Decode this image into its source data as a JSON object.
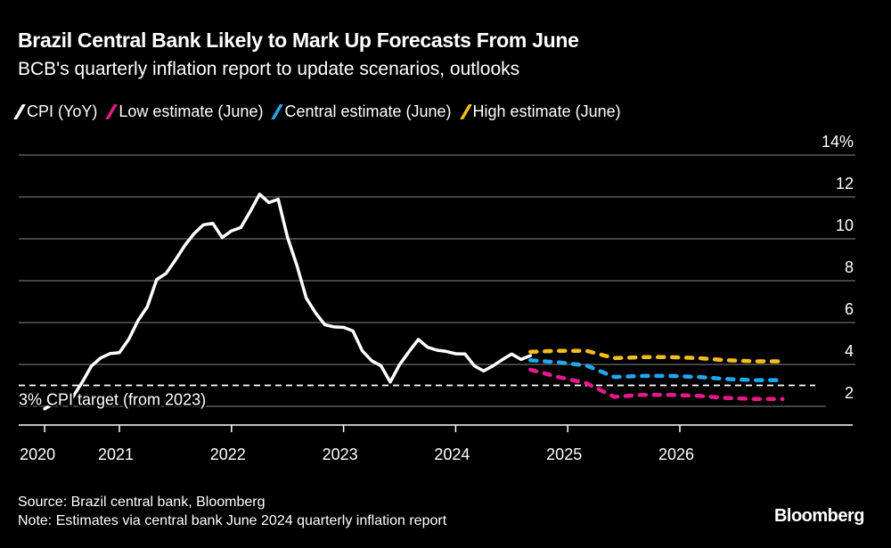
{
  "title": "Brazil Central Bank Likely to Mark Up Forecasts From June",
  "subtitle": "BCB's quarterly inflation report to update scenarios, outlooks",
  "source": "Source: Brazil central bank, Bloomberg",
  "note": "Note: Estimates via central bank June 2024 quarterly inflation report",
  "logo": "Bloomberg",
  "chart_data": {
    "type": "line",
    "xlabel": "",
    "ylabel": "",
    "y_unit": "%",
    "ylim": [
      0,
      14
    ],
    "y_ticks": [
      2,
      4,
      6,
      8,
      10,
      12,
      14
    ],
    "y_tick_labels": [
      "2",
      "4",
      "6",
      "8",
      "10",
      "12",
      "14%"
    ],
    "y_axis_position": "right",
    "x_ticks": [
      "2020",
      "2021",
      "2022",
      "2023",
      "2024",
      "2025",
      "2026"
    ],
    "grid": true,
    "legend_position": "top-left",
    "reference_line": {
      "value": 3,
      "label": "3% CPI target (from 2023)"
    },
    "series": [
      {
        "name": "CPI (YoY)",
        "color": "#ffffff",
        "style": "solid",
        "x": [
          "2020-05",
          "2020-06",
          "2020-07",
          "2020-08",
          "2020-09",
          "2020-10",
          "2020-11",
          "2020-12",
          "2021-01",
          "2021-02",
          "2021-03",
          "2021-04",
          "2021-05",
          "2021-06",
          "2021-07",
          "2021-08",
          "2021-09",
          "2021-10",
          "2021-11",
          "2021-12",
          "2022-01",
          "2022-02",
          "2022-03",
          "2022-04",
          "2022-05",
          "2022-06",
          "2022-07",
          "2022-08",
          "2022-09",
          "2022-10",
          "2022-11",
          "2022-12",
          "2023-01",
          "2023-02",
          "2023-03",
          "2023-04",
          "2023-05",
          "2023-06",
          "2023-07",
          "2023-08",
          "2023-09",
          "2023-10",
          "2023-11",
          "2023-12",
          "2024-01",
          "2024-02",
          "2024-03",
          "2024-04",
          "2024-05",
          "2024-06",
          "2024-07",
          "2024-08",
          "2024-09"
        ],
        "values": [
          1.88,
          2.13,
          2.31,
          2.44,
          3.14,
          3.92,
          4.31,
          4.52,
          4.56,
          5.2,
          6.1,
          6.76,
          8.06,
          8.35,
          8.99,
          9.68,
          10.25,
          10.67,
          10.74,
          10.06,
          10.38,
          10.54,
          11.3,
          12.13,
          11.73,
          11.89,
          10.07,
          8.73,
          7.17,
          6.47,
          5.9,
          5.79,
          5.77,
          5.6,
          4.65,
          4.18,
          3.94,
          3.16,
          3.99,
          4.61,
          5.19,
          4.82,
          4.68,
          4.62,
          4.51,
          4.5,
          3.93,
          3.69,
          3.93,
          4.23,
          4.5,
          4.24,
          4.42
        ]
      },
      {
        "name": "Low estimate (June)",
        "color": "#e8188c",
        "style": "dashed",
        "x": [
          "2024-09",
          "2024-12",
          "2025-03",
          "2025-06",
          "2025-09",
          "2025-12",
          "2026-03",
          "2026-06",
          "2026-09",
          "2026-12"
        ],
        "values": [
          3.75,
          3.4,
          3.1,
          2.45,
          2.55,
          2.55,
          2.5,
          2.4,
          2.35,
          2.35
        ]
      },
      {
        "name": "Central estimate (June)",
        "color": "#1fa8f0",
        "style": "dashed",
        "x": [
          "2024-09",
          "2024-12",
          "2025-03",
          "2025-06",
          "2025-09",
          "2025-12",
          "2026-03",
          "2026-06",
          "2026-09",
          "2026-12"
        ],
        "values": [
          4.2,
          4.1,
          3.95,
          3.4,
          3.45,
          3.45,
          3.4,
          3.3,
          3.25,
          3.25
        ]
      },
      {
        "name": "High estimate (June)",
        "color": "#f5bd1f",
        "style": "dashed",
        "x": [
          "2024-09",
          "2024-12",
          "2025-03",
          "2025-06",
          "2025-09",
          "2025-12",
          "2026-03",
          "2026-06",
          "2026-09",
          "2026-12"
        ],
        "values": [
          4.6,
          4.65,
          4.65,
          4.3,
          4.35,
          4.35,
          4.3,
          4.2,
          4.15,
          4.15
        ]
      }
    ]
  }
}
